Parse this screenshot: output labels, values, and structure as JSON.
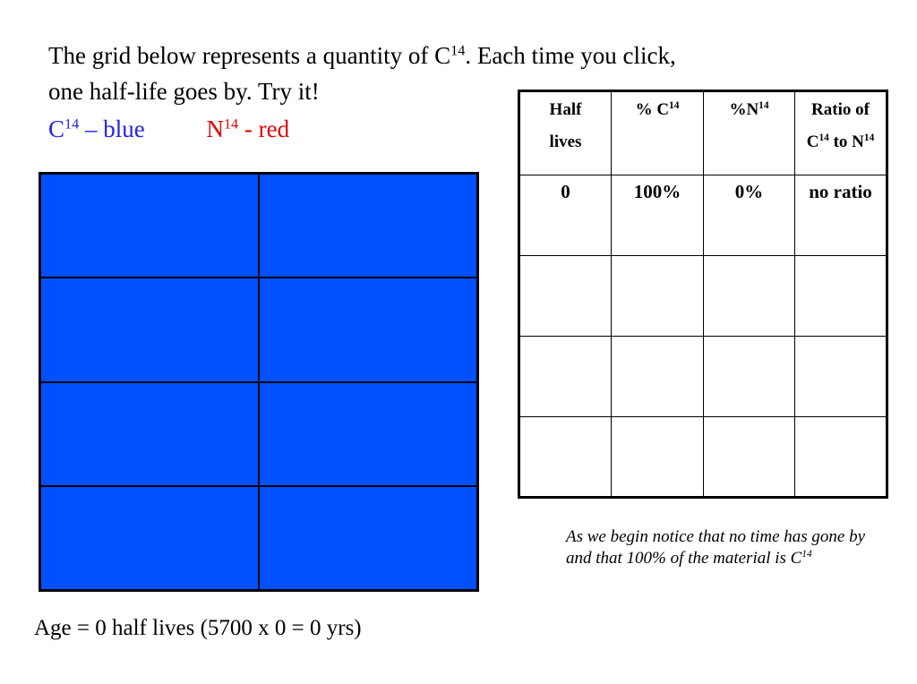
{
  "intro": {
    "line1": "The grid below represents a quantity of C",
    "sup1": "14",
    "line1_rest": ". Each time you click,",
    "line2": "one half-life goes by. Try it!"
  },
  "legend": {
    "carbon": "C",
    "carbon_sup": "14",
    "carbon_color": " – blue",
    "nitrogen": "N",
    "nitrogen_sup": "14",
    "nitrogen_color": " - red"
  },
  "table": {
    "header": {
      "half_lives": "Half lives",
      "pct_c": "% C",
      "pct_c_sup": "14",
      "pct_n": "%N",
      "pct_n_sup": "14",
      "ratio1": "Ratio of",
      "ratio_c": "C",
      "ratio_c_sup": "14",
      "ratio_to": " to N",
      "ratio_n_sup": "14"
    },
    "rows": [
      [
        "0",
        "100%",
        "0%",
        "no ratio"
      ]
    ]
  },
  "note": {
    "text": "As we begin notice that no time has gone by and that 100% of the material is C",
    "sup": "14"
  },
  "footer": "Age = 0 half lives (5700 x 0 = 0 yrs)"
}
